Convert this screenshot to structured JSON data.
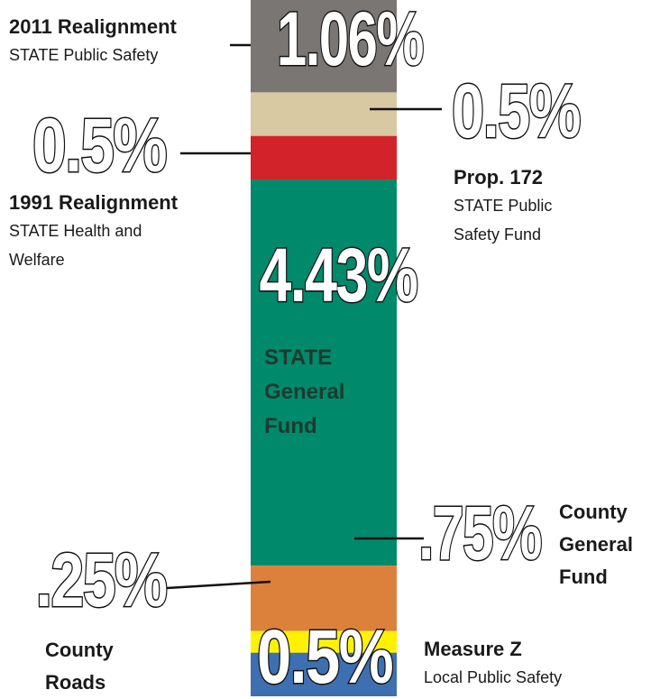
{
  "chart_data": {
    "type": "stacked-bar",
    "series": [
      {
        "name": "2011 Realignment",
        "subtitle": "STATE Public Safety",
        "color": "#7a7673",
        "values": [
          1.06
        ],
        "value_labels": [
          "1.06%"
        ]
      },
      {
        "name": "Prop. 172",
        "subtitle": "STATE Public Safety Fund",
        "color": "#d9c9a3",
        "values": [
          0.5
        ],
        "value_labels": [
          "0.5%"
        ]
      },
      {
        "name": "1991 Realignment",
        "subtitle": "STATE Health and Welfare",
        "color": "#d2232a",
        "values": [
          0.5
        ],
        "value_labels": [
          "0.5%"
        ]
      },
      {
        "name": "STATE General Fund",
        "color": "#00896b",
        "values": [
          4.43
        ],
        "value_labels": [
          "4.43%"
        ]
      },
      {
        "name": "County General Fund",
        "color": "#dc813c",
        "values": [
          0.75
        ],
        "value_labels": [
          ".75%"
        ]
      },
      {
        "name": "County Roads",
        "color": "#fff200",
        "values": [
          0.25
        ],
        "value_labels": [
          ".25%"
        ]
      },
      {
        "name": "Measure Z",
        "subtitle": "Local Public Safety",
        "color": "#3e6fb0",
        "values": [
          0.5
        ],
        "value_labels": [
          "0.5%"
        ]
      }
    ]
  }
}
